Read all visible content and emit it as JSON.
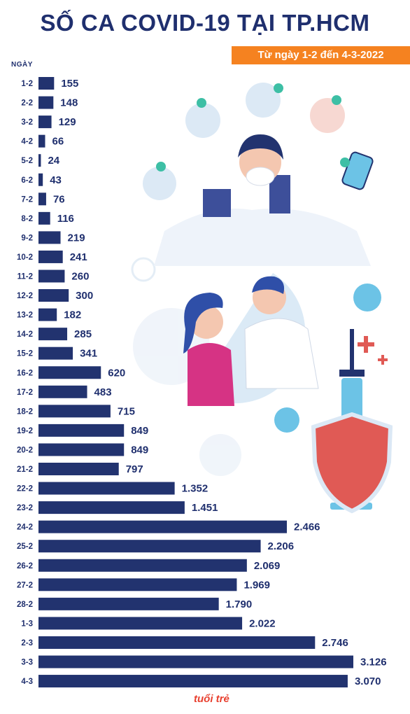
{
  "title": "SỐ CA COVID-19 TẠI TP.HCM",
  "subtitle": "Từ ngày 1-2 đến 4-3-2022",
  "source_logo": "tuổi trẻ",
  "colors": {
    "title": "#1f2f6e",
    "bar": "#22336f",
    "badge": "#f58220"
  },
  "chart_data": {
    "type": "bar",
    "orientation": "horizontal",
    "title": "SỐ CA COVID-19 TẠI TP.HCM",
    "subtitle": "Từ ngày 1-2 đến 4-3-2022",
    "category_header": "NGÀY",
    "categories": [
      "1-2",
      "2-2",
      "3-2",
      "4-2",
      "5-2",
      "6-2",
      "7-2",
      "8-2",
      "9-2",
      "10-2",
      "11-2",
      "12-2",
      "13-2",
      "14-2",
      "15-2",
      "16-2",
      "17-2",
      "18-2",
      "19-2",
      "20-2",
      "21-2",
      "22-2",
      "23-2",
      "24-2",
      "25-2",
      "26-2",
      "27-2",
      "28-2",
      "1-3",
      "2-3",
      "3-3",
      "4-3"
    ],
    "values": [
      155,
      148,
      129,
      66,
      24,
      43,
      76,
      116,
      219,
      241,
      260,
      300,
      182,
      285,
      341,
      620,
      483,
      715,
      849,
      849,
      797,
      1352,
      1451,
      2466,
      2206,
      2069,
      1969,
      1790,
      2022,
      2746,
      3126,
      3070
    ],
    "value_labels": [
      "155",
      "148",
      "129",
      "66",
      "24",
      "43",
      "76",
      "116",
      "219",
      "241",
      "260",
      "300",
      "182",
      "285",
      "341",
      "620",
      "483",
      "715",
      "849",
      "849",
      "797",
      "1.352",
      "1.451",
      "2.466",
      "2.206",
      "2.069",
      "1.969",
      "1.790",
      "2.022",
      "2.746",
      "3.126",
      "3.070"
    ],
    "xlim": [
      0,
      3126
    ],
    "grid": false,
    "data_labels": true
  }
}
